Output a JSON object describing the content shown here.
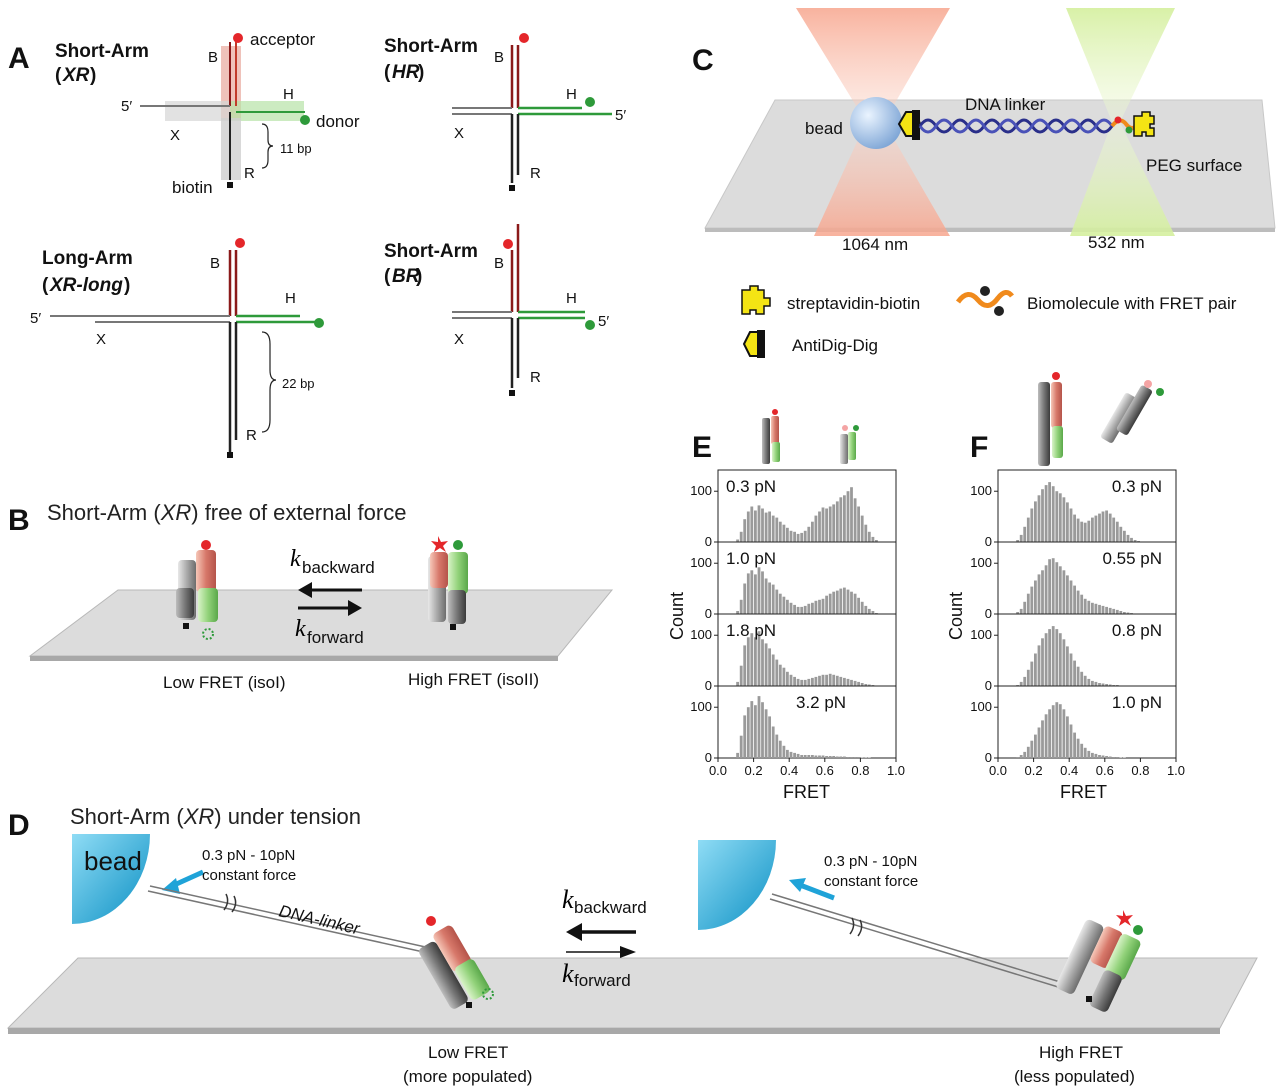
{
  "panels": {
    "A": {
      "label": "A",
      "xr": {
        "title": "Short-Arm",
        "sub": "XR",
        "acceptor": "acceptor",
        "donor": "donor",
        "biotin": "biotin",
        "bp": "11 bp",
        "B": "B",
        "H": "H",
        "X": "X",
        "R": "R",
        "five": "5′"
      },
      "hr": {
        "title": "Short-Arm",
        "sub": "HR",
        "B": "B",
        "H": "H",
        "X": "X",
        "R": "R",
        "five": "5′"
      },
      "long": {
        "title": "Long-Arm",
        "sub": "XR-long",
        "B": "B",
        "H": "H",
        "X": "X",
        "R": "R",
        "five": "5′",
        "bp": "22 bp"
      },
      "br": {
        "title": "Short-Arm",
        "sub": "BR",
        "B": "B",
        "H": "H",
        "X": "X",
        "R": "R",
        "five": "5′"
      }
    },
    "B": {
      "label": "B",
      "title_pre": "Short-Arm (",
      "title_it": "XR",
      "title_post": ") free of external force",
      "k_back": "k",
      "k_back_sub": "backward",
      "k_fwd": "k",
      "k_fwd_sub": "forward",
      "low": "Low FRET (isoI)",
      "high": "High FRET (isoII)"
    },
    "C": {
      "label": "C",
      "bead": "bead",
      "linker": "DNA linker",
      "surface": "PEG surface",
      "wl1": "1064 nm",
      "wl2": "532 nm",
      "legend": [
        "streptavidin-biotin",
        "Biomolecule with FRET pair",
        "AntiDig-Dig"
      ]
    },
    "D": {
      "label": "D",
      "title_pre": "Short-Arm (",
      "title_it": "XR",
      "title_post": ") under tension",
      "bead": "bead",
      "force": "0.3 pN - 10pN",
      "force2": "constant force",
      "linker": "DNA-linker",
      "k": "k",
      "k_back_sub": "backward",
      "k_fwd_sub": "forward",
      "low1": "Low FRET",
      "low2": "(more populated)",
      "high1": "High FRET",
      "high2": "(less populated)"
    }
  },
  "colors": {
    "acceptor": "#e4262a",
    "donor": "#2e9a3a",
    "red_strand": "#8b1a1a",
    "green_strand": "#2e9a3a",
    "bead": "#2aa7d6",
    "arrow": "#1fa3d8",
    "bars": "#9a9a9a"
  },
  "chart_data": [
    {
      "type": "bar",
      "panel": "E",
      "xlabel": "FRET",
      "ylabel": "Count",
      "xlim": [
        0.0,
        1.0
      ],
      "xticks": [
        "0.0",
        "0.2",
        "0.4",
        "0.6",
        "0.8",
        "1.0"
      ],
      "ylim": [
        0,
        130
      ],
      "yticks": [
        "0",
        "100"
      ],
      "subplots": [
        {
          "label": "0.3 pN",
          "bins": [
            0.11,
            0.13,
            0.15,
            0.17,
            0.19,
            0.21,
            0.23,
            0.25,
            0.27,
            0.29,
            0.31,
            0.33,
            0.35,
            0.37,
            0.39,
            0.41,
            0.43,
            0.45,
            0.47,
            0.49,
            0.51,
            0.53,
            0.55,
            0.57,
            0.59,
            0.61,
            0.63,
            0.65,
            0.67,
            0.69,
            0.71,
            0.73,
            0.75,
            0.77,
            0.79,
            0.81,
            0.83,
            0.85,
            0.87,
            0.89
          ],
          "values": [
            5,
            20,
            45,
            60,
            70,
            62,
            72,
            66,
            58,
            60,
            52,
            48,
            40,
            34,
            28,
            22,
            20,
            16,
            18,
            22,
            30,
            40,
            52,
            60,
            68,
            66,
            70,
            74,
            80,
            88,
            92,
            100,
            108,
            86,
            70,
            52,
            34,
            20,
            10,
            4
          ]
        },
        {
          "label": "1.0 pN",
          "bins": [
            0.11,
            0.13,
            0.15,
            0.17,
            0.19,
            0.21,
            0.23,
            0.25,
            0.27,
            0.29,
            0.31,
            0.33,
            0.35,
            0.37,
            0.39,
            0.41,
            0.43,
            0.45,
            0.47,
            0.49,
            0.51,
            0.53,
            0.55,
            0.57,
            0.59,
            0.61,
            0.63,
            0.65,
            0.67,
            0.69,
            0.71,
            0.73,
            0.75,
            0.77,
            0.79,
            0.81,
            0.83,
            0.85,
            0.87,
            0.89
          ],
          "values": [
            6,
            28,
            60,
            80,
            86,
            78,
            92,
            84,
            70,
            62,
            58,
            48,
            40,
            34,
            28,
            22,
            18,
            14,
            14,
            16,
            20,
            22,
            26,
            28,
            30,
            36,
            40,
            44,
            46,
            50,
            52,
            48,
            44,
            40,
            32,
            24,
            16,
            10,
            6,
            2
          ]
        },
        {
          "label": "1.8 pN",
          "bins": [
            0.11,
            0.13,
            0.15,
            0.17,
            0.19,
            0.21,
            0.23,
            0.25,
            0.27,
            0.29,
            0.31,
            0.33,
            0.35,
            0.37,
            0.39,
            0.41,
            0.43,
            0.45,
            0.47,
            0.49,
            0.51,
            0.53,
            0.55,
            0.57,
            0.59,
            0.61,
            0.63,
            0.65,
            0.67,
            0.69,
            0.71,
            0.73,
            0.75,
            0.77,
            0.79,
            0.81,
            0.83,
            0.85,
            0.87,
            0.89
          ],
          "values": [
            8,
            40,
            80,
            96,
            104,
            96,
            108,
            92,
            84,
            74,
            62,
            52,
            42,
            36,
            28,
            22,
            18,
            14,
            12,
            12,
            14,
            16,
            18,
            20,
            22,
            22,
            24,
            22,
            20,
            18,
            16,
            14,
            12,
            10,
            8,
            6,
            4,
            3,
            2,
            1
          ]
        },
        {
          "label": "3.2 pN",
          "bins": [
            0.11,
            0.13,
            0.15,
            0.17,
            0.19,
            0.21,
            0.23,
            0.25,
            0.27,
            0.29,
            0.31,
            0.33,
            0.35,
            0.37,
            0.39,
            0.41,
            0.43,
            0.45,
            0.47,
            0.49,
            0.51,
            0.53,
            0.55,
            0.57,
            0.59,
            0.61,
            0.63,
            0.65,
            0.67,
            0.69,
            0.71,
            0.73,
            0.75,
            0.77,
            0.79,
            0.81,
            0.83,
            0.85,
            0.87,
            0.89
          ],
          "values": [
            10,
            44,
            84,
            100,
            112,
            104,
            122,
            110,
            96,
            82,
            62,
            46,
            34,
            24,
            16,
            12,
            10,
            8,
            6,
            6,
            6,
            6,
            5,
            5,
            5,
            4,
            4,
            4,
            3,
            3,
            3,
            2,
            2,
            2,
            2,
            1,
            1,
            1,
            0,
            0
          ]
        }
      ]
    },
    {
      "type": "bar",
      "panel": "F",
      "xlabel": "FRET",
      "ylabel": "Count",
      "xlim": [
        0.0,
        1.0
      ],
      "xticks": [
        "0.0",
        "0.2",
        "0.4",
        "0.6",
        "0.8",
        "1.0"
      ],
      "ylim": [
        0,
        130
      ],
      "yticks": [
        "0",
        "100"
      ],
      "subplots": [
        {
          "label": "0.3 pN",
          "bins": [
            0.11,
            0.13,
            0.15,
            0.17,
            0.19,
            0.21,
            0.23,
            0.25,
            0.27,
            0.29,
            0.31,
            0.33,
            0.35,
            0.37,
            0.39,
            0.41,
            0.43,
            0.45,
            0.47,
            0.49,
            0.51,
            0.53,
            0.55,
            0.57,
            0.59,
            0.61,
            0.63,
            0.65,
            0.67,
            0.69,
            0.71,
            0.73,
            0.75,
            0.77,
            0.79,
            0.81,
            0.83,
            0.85,
            0.87,
            0.89
          ],
          "values": [
            4,
            14,
            30,
            48,
            66,
            80,
            92,
            104,
            112,
            118,
            110,
            100,
            96,
            88,
            78,
            66,
            54,
            46,
            40,
            38,
            42,
            48,
            52,
            56,
            60,
            62,
            56,
            48,
            40,
            30,
            22,
            14,
            8,
            4,
            2,
            1,
            0,
            0,
            0,
            0
          ]
        },
        {
          "label": "0.55 pN",
          "bins": [
            0.11,
            0.13,
            0.15,
            0.17,
            0.19,
            0.21,
            0.23,
            0.25,
            0.27,
            0.29,
            0.31,
            0.33,
            0.35,
            0.37,
            0.39,
            0.41,
            0.43,
            0.45,
            0.47,
            0.49,
            0.51,
            0.53,
            0.55,
            0.57,
            0.59,
            0.61,
            0.63,
            0.65,
            0.67,
            0.69,
            0.71,
            0.73,
            0.75,
            0.77,
            0.79,
            0.81,
            0.83,
            0.85,
            0.87,
            0.89
          ],
          "values": [
            4,
            10,
            24,
            40,
            54,
            66,
            78,
            86,
            96,
            108,
            110,
            102,
            94,
            86,
            76,
            66,
            56,
            46,
            38,
            30,
            26,
            22,
            20,
            18,
            16,
            14,
            12,
            10,
            8,
            6,
            4,
            3,
            2,
            1,
            0,
            0,
            0,
            0,
            0,
            0
          ]
        },
        {
          "label": "0.8 pN",
          "bins": [
            0.11,
            0.13,
            0.15,
            0.17,
            0.19,
            0.21,
            0.23,
            0.25,
            0.27,
            0.29,
            0.31,
            0.33,
            0.35,
            0.37,
            0.39,
            0.41,
            0.43,
            0.45,
            0.47,
            0.49,
            0.51,
            0.53,
            0.55,
            0.57,
            0.59,
            0.61,
            0.63,
            0.65,
            0.67,
            0.69,
            0.71,
            0.73,
            0.75,
            0.77,
            0.79,
            0.81,
            0.83,
            0.85,
            0.87,
            0.89
          ],
          "values": [
            2,
            8,
            18,
            32,
            48,
            64,
            80,
            94,
            104,
            112,
            118,
            112,
            104,
            92,
            78,
            64,
            50,
            38,
            28,
            20,
            14,
            10,
            8,
            6,
            5,
            4,
            3,
            2,
            2,
            1,
            1,
            0,
            0,
            0,
            0,
            0,
            0,
            0,
            0,
            0
          ]
        },
        {
          "label": "1.0 pN",
          "bins": [
            0.11,
            0.13,
            0.15,
            0.17,
            0.19,
            0.21,
            0.23,
            0.25,
            0.27,
            0.29,
            0.31,
            0.33,
            0.35,
            0.37,
            0.39,
            0.41,
            0.43,
            0.45,
            0.47,
            0.49,
            0.51,
            0.53,
            0.55,
            0.57,
            0.59,
            0.61,
            0.63,
            0.65,
            0.67,
            0.69,
            0.71,
            0.73,
            0.75,
            0.77,
            0.79,
            0.81,
            0.83,
            0.85,
            0.87,
            0.89
          ],
          "values": [
            2,
            6,
            12,
            22,
            34,
            46,
            60,
            74,
            86,
            96,
            104,
            110,
            106,
            96,
            82,
            66,
            50,
            38,
            28,
            20,
            14,
            10,
            8,
            6,
            5,
            4,
            3,
            2,
            2,
            1,
            1,
            0,
            0,
            0,
            0,
            0,
            0,
            0,
            0,
            0
          ]
        }
      ]
    }
  ]
}
